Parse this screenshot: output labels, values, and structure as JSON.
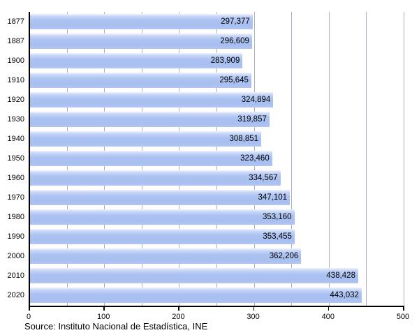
{
  "chart_data": {
    "type": "bar",
    "orientation": "horizontal",
    "title": "",
    "categories": [
      "1877",
      "1887",
      "1900",
      "1910",
      "1920",
      "1930",
      "1940",
      "1950",
      "1960",
      "1970",
      "1980",
      "1990",
      "2000",
      "2010",
      "2020"
    ],
    "values": [
      297377,
      296609,
      283909,
      295645,
      324894,
      319857,
      308851,
      323460,
      334567,
      347101,
      353160,
      353455,
      362206,
      438428,
      443032
    ],
    "value_labels": [
      "297,377",
      "296,609",
      "283,909",
      "295,645",
      "324,894",
      "319,857",
      "308,851",
      "323,460",
      "334,567",
      "347,101",
      "353,160",
      "353,455",
      "362,206",
      "438,428",
      "443,032"
    ],
    "x_axis": {
      "min": 0,
      "max": 500,
      "tick_labels": [
        "0",
        "100",
        "200",
        "300",
        "400",
        "500"
      ],
      "major_tick_interval": 100,
      "gridline_interval": 50,
      "note": "axis units are thousands of the labeled values"
    },
    "y_axis_label": "",
    "x_axis_label": "",
    "legend": "none",
    "gridlines": "vertical light gray every 50"
  },
  "source_note": "Source: Instituto Nacional de Estadística, INE",
  "colors": {
    "bar_main": "#abc2f1",
    "bar_highlight": "#eef3fd",
    "gridline": "#a9b2c2",
    "axis": "#000000",
    "text": "#000000",
    "background": "#ffffff"
  }
}
